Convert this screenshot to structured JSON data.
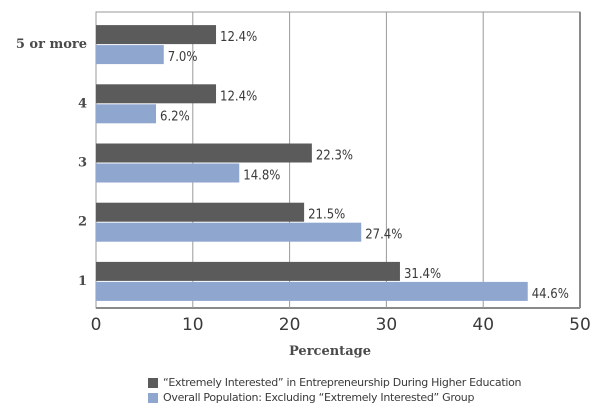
{
  "chart_data": {
    "type": "bar",
    "orientation": "horizontal",
    "categories": [
      "5 or more",
      "4",
      "3",
      "2",
      "1"
    ],
    "series": [
      {
        "name": "“Extremely Interested” in Entrepreneurship During Higher Education",
        "values": [
          12.4,
          12.4,
          22.3,
          21.5,
          31.4
        ],
        "labels": [
          "12.4%",
          "12.4%",
          "22.3%",
          "21.5%",
          "31.4%"
        ],
        "color": "#5b5b5b"
      },
      {
        "name": "Overall Population: Excluding “Extremely Interested” Group",
        "values": [
          7.0,
          6.2,
          14.8,
          27.4,
          44.6
        ],
        "labels": [
          "7.0%",
          "6.2%",
          "14.8%",
          "27.4%",
          "44.6%"
        ],
        "color": "#8fa6cf"
      }
    ],
    "xlabel": "Percentage",
    "xlim": [
      0,
      50
    ],
    "xticks": [
      0,
      10,
      20,
      30,
      40,
      50
    ],
    "grid": true,
    "legend_position": "bottom"
  }
}
